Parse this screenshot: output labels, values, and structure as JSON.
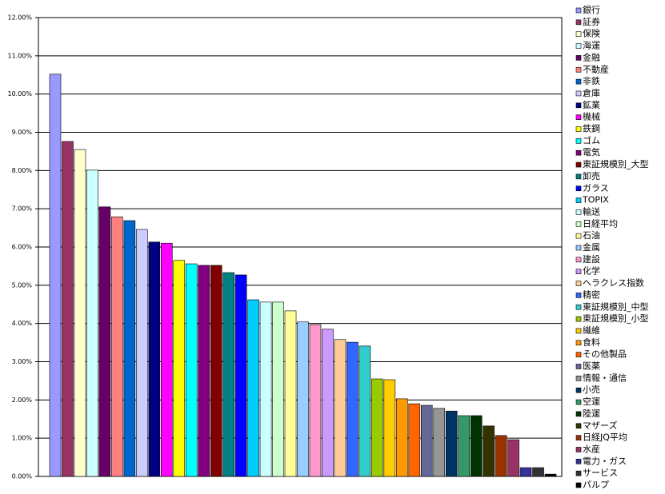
{
  "chart_data": {
    "type": "bar",
    "categories": [
      "銀行",
      "証券",
      "保険",
      "海運",
      "金融",
      "不動産",
      "非鉄",
      "倉庫",
      "鉱業",
      "機械",
      "鉄鋼",
      "ゴム",
      "電気",
      "東証規模別_大型",
      "卸売",
      "ガラス",
      "TOPIX",
      "輸送",
      "日経平均",
      "石油",
      "金属",
      "建設",
      "化学",
      "ヘラクレス指数",
      "精密",
      "東証規模別_中型",
      "東証規模別_小型",
      "繊維",
      "食料",
      "その他製品",
      "医薬",
      "情報・通信",
      "小売",
      "空運",
      "陸運",
      "マザーズ",
      "日経JQ平均",
      "水産",
      "電力・ガス",
      "サービス",
      "パルプ"
    ],
    "values": [
      10.52,
      8.76,
      8.55,
      8.01,
      7.05,
      6.79,
      6.69,
      6.46,
      6.13,
      6.1,
      5.65,
      5.56,
      5.52,
      5.52,
      5.33,
      5.27,
      4.62,
      4.56,
      4.56,
      4.33,
      4.04,
      3.97,
      3.85,
      3.58,
      3.51,
      3.41,
      2.55,
      2.53,
      2.03,
      1.9,
      1.86,
      1.78,
      1.71,
      1.59,
      1.59,
      1.32,
      1.07,
      0.96,
      0.23,
      0.23,
      0.06
    ],
    "colors": [
      "#9999ff",
      "#993366",
      "#ffffcc",
      "#ccffff",
      "#660066",
      "#ff8080",
      "#0066cc",
      "#ccccff",
      "#000080",
      "#ff00ff",
      "#ffff00",
      "#00ffff",
      "#800080",
      "#800000",
      "#008080",
      "#0000ff",
      "#00ccff",
      "#ccffff",
      "#ccffcc",
      "#ffff99",
      "#99ccff",
      "#ff99cc",
      "#cc99ff",
      "#ffcc99",
      "#3366ff",
      "#33cccc",
      "#99cc00",
      "#ffcc00",
      "#ff9900",
      "#ff6600",
      "#666699",
      "#969696",
      "#003366",
      "#339966",
      "#003300",
      "#333300",
      "#993300",
      "#993366",
      "#333399",
      "#333333",
      "#000000"
    ],
    "ylim": [
      0,
      12
    ],
    "yticks": [
      {
        "value": 0,
        "label": "0.00%"
      },
      {
        "value": 1,
        "label": "1.00%"
      },
      {
        "value": 2,
        "label": "2.00%"
      },
      {
        "value": 3,
        "label": "3.00%"
      },
      {
        "value": 4,
        "label": "4.00%"
      },
      {
        "value": 5,
        "label": "5.00%"
      },
      {
        "value": 6,
        "label": "6.00%"
      },
      {
        "value": 7,
        "label": "7.00%"
      },
      {
        "value": 8,
        "label": "8.00%"
      },
      {
        "value": 9,
        "label": "9.00%"
      },
      {
        "value": 10,
        "label": "10.00%"
      },
      {
        "value": 11,
        "label": "11.00%"
      },
      {
        "value": 12,
        "label": "12.00%"
      }
    ],
    "grid": true,
    "legend": "right"
  }
}
